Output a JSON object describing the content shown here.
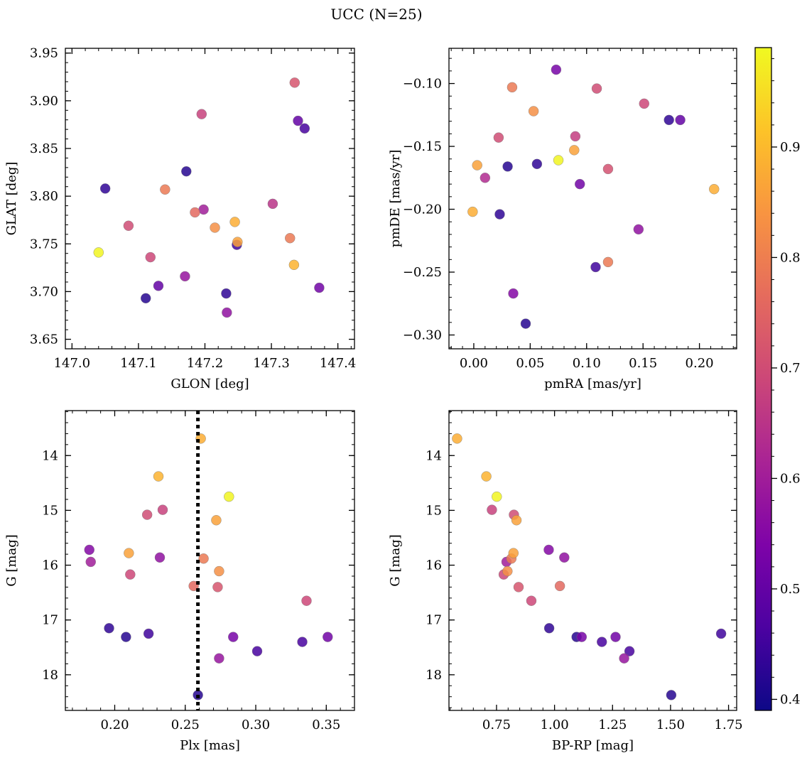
{
  "figure": {
    "title": "UCC (N=25)"
  },
  "colorbar": {
    "min": 0.39,
    "max": 0.99,
    "ticks": [
      0.4,
      0.5,
      0.6,
      0.7,
      0.8,
      0.9
    ],
    "tick_labels": [
      "0.4",
      "0.5",
      "0.6",
      "0.7",
      "0.8",
      "0.9"
    ],
    "colormap": "plasma"
  },
  "chart_data": [
    {
      "type": "scatter",
      "panel": "top-left",
      "xlabel": "GLON [deg]",
      "ylabel": "GLAT [deg]",
      "xlim": [
        146.99,
        147.425
      ],
      "ylim": [
        3.64,
        3.955
      ],
      "y_inverted": false,
      "xticks": [
        147.0,
        147.1,
        147.2,
        147.3,
        147.4
      ],
      "xtick_labels": [
        "147.0",
        "147.1",
        "147.2",
        "147.3",
        "147.4"
      ],
      "yticks": [
        3.65,
        3.7,
        3.75,
        3.8,
        3.85,
        3.9,
        3.95
      ],
      "ytick_labels": [
        "3.65",
        "3.70",
        "3.75",
        "3.80",
        "3.85",
        "3.90",
        "3.95"
      ],
      "points": [
        {
          "x": 147.04,
          "y": 3.741,
          "c": 0.985
        },
        {
          "x": 147.05,
          "y": 3.808,
          "c": 0.43
        },
        {
          "x": 147.085,
          "y": 3.769,
          "c": 0.7
        },
        {
          "x": 147.111,
          "y": 3.693,
          "c": 0.42
        },
        {
          "x": 147.118,
          "y": 3.736,
          "c": 0.69
        },
        {
          "x": 147.13,
          "y": 3.706,
          "c": 0.5
        },
        {
          "x": 147.14,
          "y": 3.807,
          "c": 0.79
        },
        {
          "x": 147.17,
          "y": 3.716,
          "c": 0.58
        },
        {
          "x": 147.172,
          "y": 3.826,
          "c": 0.42
        },
        {
          "x": 147.185,
          "y": 3.783,
          "c": 0.76
        },
        {
          "x": 147.195,
          "y": 3.886,
          "c": 0.68
        },
        {
          "x": 147.198,
          "y": 3.786,
          "c": 0.6
        },
        {
          "x": 147.215,
          "y": 3.767,
          "c": 0.83
        },
        {
          "x": 147.232,
          "y": 3.698,
          "c": 0.43
        },
        {
          "x": 147.233,
          "y": 3.678,
          "c": 0.57
        },
        {
          "x": 147.245,
          "y": 3.773,
          "c": 0.88
        },
        {
          "x": 147.248,
          "y": 3.749,
          "c": 0.45
        },
        {
          "x": 147.249,
          "y": 3.752,
          "c": 0.86
        },
        {
          "x": 147.302,
          "y": 3.792,
          "c": 0.65
        },
        {
          "x": 147.328,
          "y": 3.756,
          "c": 0.79
        },
        {
          "x": 147.334,
          "y": 3.728,
          "c": 0.89
        },
        {
          "x": 147.335,
          "y": 3.919,
          "c": 0.72
        },
        {
          "x": 147.34,
          "y": 3.879,
          "c": 0.5
        },
        {
          "x": 147.35,
          "y": 3.871,
          "c": 0.46
        },
        {
          "x": 147.372,
          "y": 3.704,
          "c": 0.52
        }
      ]
    },
    {
      "type": "scatter",
      "panel": "top-right",
      "xlabel": "pmRA [mas/yr]",
      "ylabel": "pmDE [mas/yr]",
      "xlim": [
        -0.022,
        0.233
      ],
      "ylim": [
        -0.311,
        -0.072
      ],
      "y_inverted": false,
      "xticks": [
        0.0,
        0.05,
        0.1,
        0.15,
        0.2
      ],
      "xtick_labels": [
        "0.00",
        "0.05",
        "0.10",
        "0.15",
        "0.20"
      ],
      "yticks": [
        -0.3,
        -0.25,
        -0.2,
        -0.15,
        -0.1
      ],
      "ytick_labels": [
        "−0.30",
        "−0.25",
        "−0.20",
        "−0.15",
        "−0.10"
      ],
      "points": [
        {
          "x": -0.001,
          "y": -0.202,
          "c": 0.88
        },
        {
          "x": 0.003,
          "y": -0.165,
          "c": 0.86
        },
        {
          "x": 0.01,
          "y": -0.175,
          "c": 0.63
        },
        {
          "x": 0.022,
          "y": -0.143,
          "c": 0.7
        },
        {
          "x": 0.023,
          "y": -0.204,
          "c": 0.43
        },
        {
          "x": 0.03,
          "y": -0.166,
          "c": 0.42
        },
        {
          "x": 0.034,
          "y": -0.103,
          "c": 0.79
        },
        {
          "x": 0.035,
          "y": -0.267,
          "c": 0.55
        },
        {
          "x": 0.046,
          "y": -0.291,
          "c": 0.42
        },
        {
          "x": 0.053,
          "y": -0.122,
          "c": 0.83
        },
        {
          "x": 0.056,
          "y": -0.164,
          "c": 0.43
        },
        {
          "x": 0.073,
          "y": -0.089,
          "c": 0.53
        },
        {
          "x": 0.075,
          "y": -0.161,
          "c": 0.985
        },
        {
          "x": 0.089,
          "y": -0.153,
          "c": 0.86
        },
        {
          "x": 0.09,
          "y": -0.142,
          "c": 0.67
        },
        {
          "x": 0.094,
          "y": -0.18,
          "c": 0.52
        },
        {
          "x": 0.108,
          "y": -0.246,
          "c": 0.45
        },
        {
          "x": 0.109,
          "y": -0.104,
          "c": 0.7
        },
        {
          "x": 0.119,
          "y": -0.168,
          "c": 0.71
        },
        {
          "x": 0.119,
          "y": -0.242,
          "c": 0.79
        },
        {
          "x": 0.146,
          "y": -0.216,
          "c": 0.57
        },
        {
          "x": 0.151,
          "y": -0.116,
          "c": 0.69
        },
        {
          "x": 0.173,
          "y": -0.129,
          "c": 0.43
        },
        {
          "x": 0.183,
          "y": -0.129,
          "c": 0.5
        },
        {
          "x": 0.213,
          "y": -0.184,
          "c": 0.88
        }
      ]
    },
    {
      "type": "scatter",
      "panel": "bottom-left",
      "xlabel": "Plx [mas]",
      "ylabel": "G [mag]",
      "xlim": [
        0.165,
        0.37
      ],
      "ylim": [
        18.65,
        13.18
      ],
      "y_inverted": true,
      "xticks": [
        0.2,
        0.25,
        0.3,
        0.35
      ],
      "xtick_labels": [
        "0.20",
        "0.25",
        "0.30",
        "0.35"
      ],
      "yticks": [
        14,
        15,
        16,
        17,
        18
      ],
      "ytick_labels": [
        "14",
        "15",
        "16",
        "17",
        "18"
      ],
      "vline": {
        "x": 0.259,
        "style": "dotted",
        "color": "#000000"
      },
      "points": [
        {
          "x": 0.182,
          "y": 15.72,
          "c": 0.55
        },
        {
          "x": 0.183,
          "y": 15.94,
          "c": 0.6
        },
        {
          "x": 0.196,
          "y": 17.15,
          "c": 0.43
        },
        {
          "x": 0.208,
          "y": 17.31,
          "c": 0.42
        },
        {
          "x": 0.21,
          "y": 15.78,
          "c": 0.86
        },
        {
          "x": 0.211,
          "y": 16.17,
          "c": 0.69
        },
        {
          "x": 0.223,
          "y": 15.08,
          "c": 0.7
        },
        {
          "x": 0.224,
          "y": 17.25,
          "c": 0.45
        },
        {
          "x": 0.231,
          "y": 14.38,
          "c": 0.89
        },
        {
          "x": 0.232,
          "y": 15.86,
          "c": 0.57
        },
        {
          "x": 0.234,
          "y": 14.99,
          "c": 0.68
        },
        {
          "x": 0.256,
          "y": 16.38,
          "c": 0.76
        },
        {
          "x": 0.259,
          "y": 18.37,
          "c": 0.42
        },
        {
          "x": 0.261,
          "y": 13.69,
          "c": 0.88
        },
        {
          "x": 0.263,
          "y": 15.88,
          "c": 0.79
        },
        {
          "x": 0.272,
          "y": 15.18,
          "c": 0.86
        },
        {
          "x": 0.273,
          "y": 16.4,
          "c": 0.72
        },
        {
          "x": 0.274,
          "y": 16.11,
          "c": 0.83
        },
        {
          "x": 0.274,
          "y": 17.7,
          "c": 0.58
        },
        {
          "x": 0.281,
          "y": 14.75,
          "c": 0.985
        },
        {
          "x": 0.284,
          "y": 17.31,
          "c": 0.53
        },
        {
          "x": 0.301,
          "y": 17.57,
          "c": 0.46
        },
        {
          "x": 0.333,
          "y": 17.4,
          "c": 0.46
        },
        {
          "x": 0.336,
          "y": 16.65,
          "c": 0.69
        },
        {
          "x": 0.351,
          "y": 17.31,
          "c": 0.52
        }
      ]
    },
    {
      "type": "scatter",
      "panel": "bottom-right",
      "xlabel": "BP-RP [mag]",
      "ylabel": "G [mag]",
      "xlim": [
        0.545,
        1.785
      ],
      "ylim": [
        18.65,
        13.18
      ],
      "y_inverted": true,
      "xticks": [
        0.75,
        1.0,
        1.25,
        1.5,
        1.75
      ],
      "xtick_labels": [
        "0.75",
        "1.00",
        "1.25",
        "1.50",
        "1.75"
      ],
      "yticks": [
        14,
        15,
        16,
        17,
        18
      ],
      "ytick_labels": [
        "14",
        "15",
        "16",
        "17",
        "18"
      ],
      "points": [
        {
          "x": 0.58,
          "y": 13.69,
          "c": 0.88
        },
        {
          "x": 0.706,
          "y": 14.38,
          "c": 0.89
        },
        {
          "x": 0.73,
          "y": 14.99,
          "c": 0.68
        },
        {
          "x": 0.751,
          "y": 14.75,
          "c": 0.985
        },
        {
          "x": 0.781,
          "y": 16.17,
          "c": 0.69
        },
        {
          "x": 0.793,
          "y": 15.94,
          "c": 0.6
        },
        {
          "x": 0.797,
          "y": 16.11,
          "c": 0.83
        },
        {
          "x": 0.814,
          "y": 15.88,
          "c": 0.79
        },
        {
          "x": 0.823,
          "y": 15.78,
          "c": 0.86
        },
        {
          "x": 0.825,
          "y": 15.08,
          "c": 0.7
        },
        {
          "x": 0.836,
          "y": 15.18,
          "c": 0.86
        },
        {
          "x": 0.845,
          "y": 16.4,
          "c": 0.72
        },
        {
          "x": 0.9,
          "y": 16.65,
          "c": 0.69
        },
        {
          "x": 0.975,
          "y": 15.72,
          "c": 0.55
        },
        {
          "x": 0.977,
          "y": 17.15,
          "c": 0.43
        },
        {
          "x": 1.023,
          "y": 16.38,
          "c": 0.76
        },
        {
          "x": 1.042,
          "y": 15.86,
          "c": 0.57
        },
        {
          "x": 1.095,
          "y": 17.31,
          "c": 0.42
        },
        {
          "x": 1.117,
          "y": 17.31,
          "c": 0.53
        },
        {
          "x": 1.204,
          "y": 17.4,
          "c": 0.46
        },
        {
          "x": 1.263,
          "y": 17.31,
          "c": 0.52
        },
        {
          "x": 1.3,
          "y": 17.7,
          "c": 0.58
        },
        {
          "x": 1.323,
          "y": 17.57,
          "c": 0.46
        },
        {
          "x": 1.503,
          "y": 18.37,
          "c": 0.42
        },
        {
          "x": 1.718,
          "y": 17.25,
          "c": 0.45
        }
      ]
    }
  ]
}
